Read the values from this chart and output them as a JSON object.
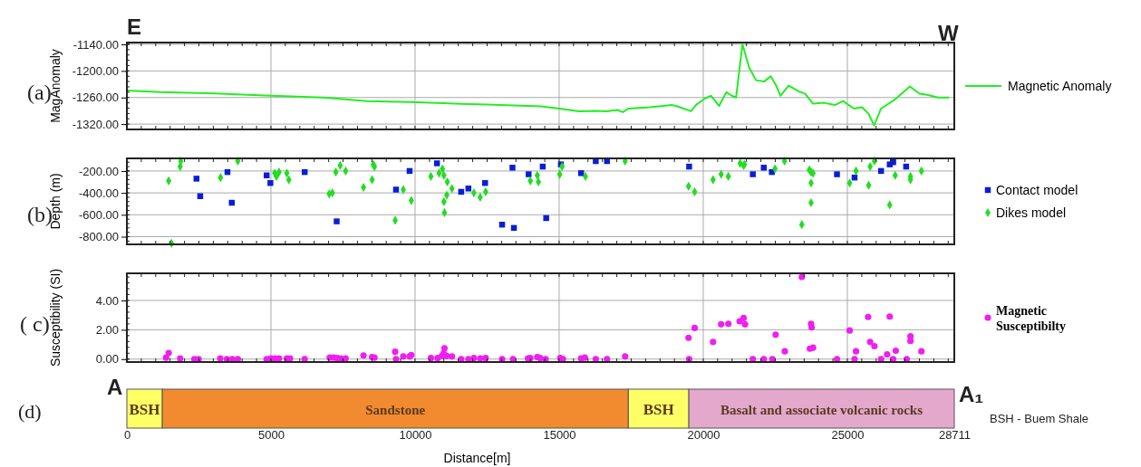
{
  "chart_data": [
    {
      "type": "line",
      "ylabel": "MagAnomaly",
      "xlim": [
        0,
        28711
      ],
      "ylim": [
        -1332,
        -1136
      ],
      "xticks": [
        5000,
        10000,
        15000,
        20000,
        25000
      ],
      "yticks": [
        {
          "value": -1140,
          "label": "-1140.00"
        },
        {
          "value": -1200,
          "label": "-1200.00"
        },
        {
          "value": -1260,
          "label": "-1260.00"
        },
        {
          "value": -1320,
          "label": "-1320.00"
        }
      ],
      "tick_labels": "y",
      "grid": true,
      "legend": "right",
      "annotations": [
        "(a)",
        "E",
        "W"
      ],
      "series": [
        {
          "name": "Magnetic Anomaly",
          "color": "#22ee22",
          "x": [
            0,
            1170,
            3060,
            5000,
            6830,
            8340,
            9850,
            10980,
            12490,
            14380,
            15000,
            15700,
            16270,
            16640,
            17020,
            17210,
            17400,
            18150,
            18910,
            19100,
            19570,
            19760,
            20060,
            20270,
            20550,
            20800,
            20990,
            21140,
            21210,
            21360,
            21590,
            21830,
            22110,
            22340,
            22530,
            22680,
            22960,
            23340,
            23530,
            23810,
            24190,
            24570,
            24850,
            25230,
            25510,
            25740,
            25930,
            26170,
            26640,
            27170,
            27490,
            27770,
            28150,
            28530
          ],
          "values": [
            -1244,
            -1248,
            -1251,
            -1256,
            -1260,
            -1268,
            -1270,
            -1273,
            -1276,
            -1280,
            -1285,
            -1291,
            -1290,
            -1291,
            -1288,
            -1293,
            -1285,
            -1282,
            -1277,
            -1280,
            -1291,
            -1276,
            -1262,
            -1256,
            -1279,
            -1248,
            -1256,
            -1260,
            -1221,
            -1140,
            -1192,
            -1221,
            -1224,
            -1212,
            -1233,
            -1256,
            -1233,
            -1247,
            -1251,
            -1274,
            -1272,
            -1277,
            -1268,
            -1285,
            -1282,
            -1297,
            -1323,
            -1285,
            -1265,
            -1235,
            -1251,
            -1254,
            -1260,
            -1260
          ]
        }
      ]
    },
    {
      "type": "scatter",
      "ylabel": "Depth (m)",
      "xlim": [
        0,
        28711
      ],
      "ylim": [
        -870,
        -85
      ],
      "xticks": [
        5000,
        10000,
        15000,
        20000,
        25000
      ],
      "yticks": [
        {
          "value": -200,
          "label": "-200.00"
        },
        {
          "value": -400,
          "label": "-400.00"
        },
        {
          "value": -600,
          "label": "-600.00"
        },
        {
          "value": -800,
          "label": "-800.00"
        }
      ],
      "tick_labels": "y",
      "grid": true,
      "legend": "right",
      "annotations": [
        "(b)"
      ],
      "series": [
        {
          "name": "Contact model",
          "color": "#0a1ed6",
          "marker": "square",
          "x": [
            2415,
            2545,
            3490,
            3640,
            4850,
            4980,
            6170,
            7280,
            9340,
            9810,
            10760,
            11600,
            11850,
            12430,
            13020,
            13430,
            13380,
            13940,
            14430,
            14550,
            15060,
            15760,
            16270,
            16660,
            19510,
            21720,
            22100,
            22380,
            24640,
            25250,
            26170,
            26470,
            26590,
            27040
          ],
          "values": [
            -270,
            -430,
            -210,
            -490,
            -240,
            -310,
            -210,
            -660,
            -370,
            -200,
            -130,
            -390,
            -360,
            -310,
            -690,
            -720,
            -170,
            -230,
            -160,
            -630,
            -140,
            -220,
            -110,
            -110,
            -160,
            -230,
            -170,
            -210,
            -230,
            -260,
            -200,
            -140,
            -120,
            -160
          ]
        },
        {
          "name": "Dikes model",
          "color": "#22dd22",
          "marker": "diamond",
          "x": [
            1450,
            1550,
            1850,
            1870,
            3250,
            3850,
            5130,
            5190,
            5280,
            5550,
            5620,
            7020,
            7130,
            7250,
            7400,
            7590,
            8210,
            8510,
            8550,
            8590,
            9310,
            9590,
            9870,
            10550,
            10830,
            10950,
            11000,
            11120,
            11020,
            11000,
            11100,
            11280,
            12040,
            12260,
            12450,
            14000,
            14240,
            14280,
            15020,
            15100,
            15910,
            17290,
            19490,
            19700,
            20340,
            20620,
            20870,
            21280,
            21400,
            21430,
            22490,
            22820,
            23420,
            23680,
            23740,
            23810,
            23740,
            23740,
            25080,
            25300,
            25740,
            25790,
            25940,
            26470,
            26660,
            27190,
            27190,
            27570
          ],
          "values": [
            -290,
            -860,
            -160,
            -110,
            -260,
            -110,
            -220,
            -250,
            -210,
            -220,
            -280,
            -410,
            -400,
            -210,
            -150,
            -200,
            -350,
            -280,
            -140,
            -160,
            -650,
            -370,
            -470,
            -250,
            -220,
            -180,
            -240,
            -300,
            -580,
            -480,
            -420,
            -360,
            -400,
            -440,
            -390,
            -290,
            -240,
            -300,
            -230,
            -160,
            -250,
            -110,
            -340,
            -390,
            -280,
            -230,
            -250,
            -130,
            -150,
            -140,
            -180,
            -110,
            -690,
            -190,
            -210,
            -220,
            -310,
            -490,
            -310,
            -200,
            -330,
            -160,
            -110,
            -510,
            -240,
            -250,
            -280,
            -200
          ]
        }
      ]
    },
    {
      "type": "scatter",
      "ylabel": "Susceptibility (SI)",
      "xlim": [
        0,
        28711
      ],
      "ylim": [
        -0.2,
        5.85
      ],
      "xticks": [
        5000,
        10000,
        15000,
        20000,
        25000
      ],
      "yticks": [
        {
          "value": 0,
          "label": "0.00"
        },
        {
          "value": 2,
          "label": "2.00"
        },
        {
          "value": 4,
          "label": "4.00"
        }
      ],
      "tick_labels": "y",
      "grid": true,
      "legend": "right",
      "annotations": [
        "( c)"
      ],
      "series": [
        {
          "name": "Magnetic Susceptibilty",
          "color": "#f01ef0",
          "marker": "circle",
          "x": [
            1360,
            1450,
            1850,
            2340,
            2490,
            3240,
            3470,
            3660,
            3850,
            4850,
            5000,
            5130,
            5280,
            5550,
            5660,
            6170,
            7040,
            7170,
            7300,
            7420,
            7590,
            8210,
            8510,
            8590,
            9310,
            9340,
            9590,
            9810,
            9870,
            10550,
            10780,
            10930,
            10990,
            11020,
            11100,
            11280,
            11600,
            11850,
            12040,
            12260,
            12450,
            13020,
            13400,
            13920,
            14000,
            14240,
            14340,
            14530,
            15040,
            15130,
            15760,
            15890,
            16270,
            16660,
            17290,
            19490,
            19510,
            19700,
            20340,
            20620,
            20870,
            21260,
            21400,
            21450,
            21720,
            22100,
            22400,
            22510,
            22830,
            23420,
            23740,
            23760,
            23700,
            23810,
            24640,
            25080,
            25250,
            25300,
            25720,
            25790,
            25940,
            26170,
            26380,
            26470,
            26590,
            26680,
            27060,
            27190,
            27190,
            27570
          ],
          "values": [
            0.1,
            0.42,
            0.04,
            0,
            0,
            0.04,
            0,
            0,
            0,
            0,
            0.04,
            0.04,
            0.04,
            0.04,
            0.04,
            0,
            0.1,
            0.1,
            0.07,
            0.04,
            0.04,
            0.25,
            0.14,
            0.1,
            0.5,
            0,
            0.18,
            0.18,
            0.28,
            0.07,
            0.07,
            0.21,
            0.39,
            0.74,
            0.21,
            0.18,
            0,
            0,
            0.07,
            0.04,
            0.07,
            0,
            0,
            0.04,
            0.07,
            0.14,
            0.07,
            0,
            0.07,
            0,
            0.04,
            0.1,
            0,
            0,
            0.18,
            1.45,
            0,
            2.12,
            1.17,
            2.37,
            2.41,
            2.58,
            2.8,
            2.37,
            0,
            0,
            0,
            1.66,
            0.53,
            5.6,
            2.41,
            2.16,
            0.71,
            0.78,
            0,
            1.95,
            0,
            0.53,
            2.87,
            1.17,
            0.88,
            0,
            0.32,
            2.9,
            0,
            0.57,
            0,
            1.24,
            1.56,
            0.53
          ]
        }
      ]
    },
    {
      "type": "bar",
      "orientation": "horizontal",
      "stacked": true,
      "xlabel": "Distance[m]",
      "xlim": [
        0,
        28711
      ],
      "xticks": [
        0,
        5000,
        10000,
        15000,
        20000,
        25000,
        28711
      ],
      "tick_labels": "x",
      "categories": [
        null
      ],
      "annotations": [
        "(d)",
        "A",
        "A₁",
        "BSH - Buem Shale"
      ],
      "series": [
        {
          "name": "BSH",
          "color": "#ffff66",
          "values": [
            1230
          ]
        },
        {
          "name": "Sandstone",
          "color": "#f28a30",
          "values": [
            16170
          ]
        },
        {
          "name": "BSH",
          "color": "#ffff66",
          "values": [
            2100
          ]
        },
        {
          "name": "Basalt and associate volcanic rocks",
          "color": "#e4a8cc",
          "values": [
            9210
          ]
        }
      ]
    }
  ]
}
